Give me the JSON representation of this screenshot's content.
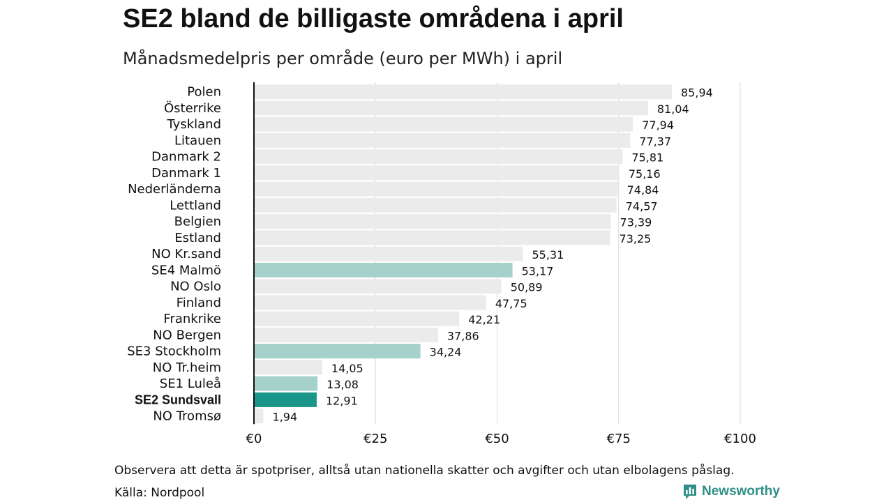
{
  "title": "SE2 bland de billigaste områdena i april",
  "subtitle": "Månadsmedelpris per område (euro per MWh) i april",
  "footnote": "Observera att detta är spotpriser, alltså utan nationella skatter och avgifter och utan elbolagens påslag.",
  "source": "Källa: Nordpool",
  "brand": "Newsworthy",
  "colors": {
    "default_bar": "#ebebeb",
    "swedish_bar": "#a6d1cb",
    "highlight_bar": "#1a968a",
    "grid": "#d9d9d9",
    "axis": "#111111",
    "brand": "#2f8f88"
  },
  "chart_data": {
    "type": "bar",
    "orientation": "horizontal",
    "categories": [
      "Polen",
      "Österrike",
      "Tyskland",
      "Litauen",
      "Danmark 2",
      "Danmark 1",
      "Nederländerna",
      "Lettland",
      "Belgien",
      "Estland",
      "NO Kr.sand",
      "SE4 Malmö",
      "NO Oslo",
      "Finland",
      "Frankrike",
      "NO Bergen",
      "SE3 Stockholm",
      "NO Tr.heim",
      "SE1 Luleå",
      "SE2 Sundsvall",
      "NO Tromsø"
    ],
    "values": [
      85.94,
      81.04,
      77.94,
      77.37,
      75.81,
      75.16,
      74.84,
      74.57,
      73.39,
      73.25,
      55.31,
      53.17,
      50.89,
      47.75,
      42.21,
      37.86,
      34.24,
      14.05,
      13.08,
      12.91,
      1.94
    ],
    "value_labels": [
      "85,94",
      "81,04",
      "77,94",
      "77,37",
      "75,81",
      "75,16",
      "74,84",
      "74,57",
      "73,39",
      "73,25",
      "55,31",
      "53,17",
      "50,89",
      "47,75",
      "42,21",
      "37,86",
      "34,24",
      "14,05",
      "13,08",
      "12,91",
      "1,94"
    ],
    "highlight": [
      "default",
      "default",
      "default",
      "default",
      "default",
      "default",
      "default",
      "default",
      "default",
      "default",
      "default",
      "swedish",
      "default",
      "default",
      "default",
      "default",
      "swedish",
      "default",
      "swedish",
      "highlight",
      "default"
    ],
    "xticks": [
      0,
      25,
      50,
      75,
      100
    ],
    "xtick_labels": [
      "€0",
      "€25",
      "€50",
      "€75",
      "€100"
    ],
    "xlim": [
      0,
      100
    ],
    "grid": true,
    "legend": "none"
  }
}
